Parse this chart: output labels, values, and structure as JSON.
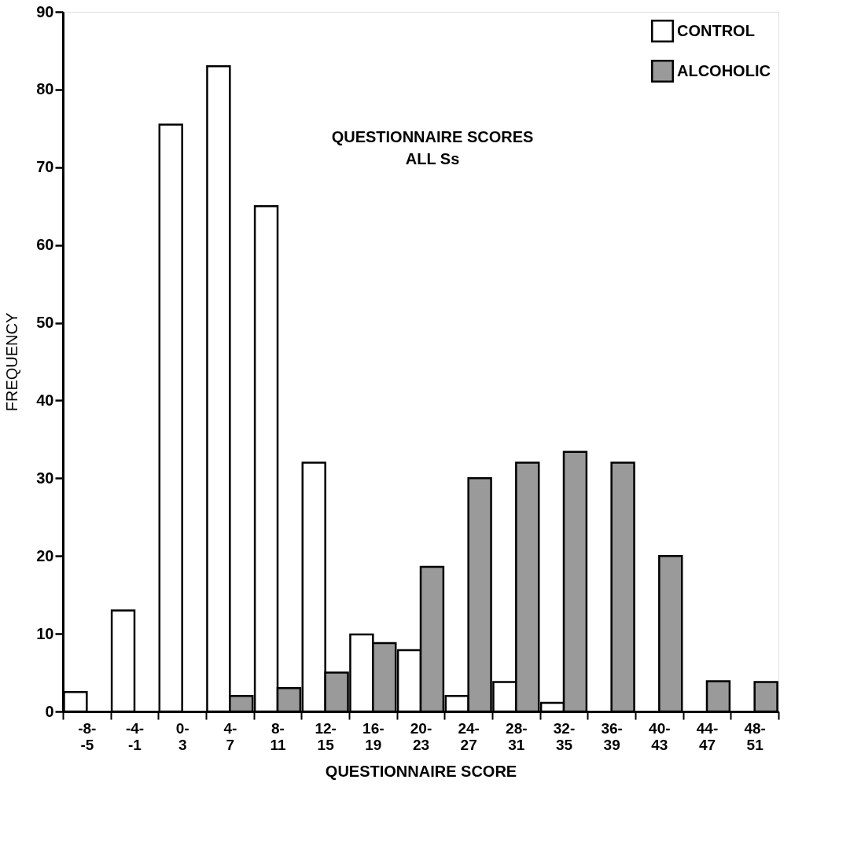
{
  "chart_data": {
    "type": "bar",
    "title": "QUESTIONNAIRE SCORES",
    "subtitle": "ALL Ss",
    "xlabel": "QUESTIONNAIRE SCORE",
    "ylabel": "FREQUENCY",
    "categories": [
      "-8- -5",
      "-4- -1",
      "0- 3",
      "4- 7",
      "8- 11",
      "12- 15",
      "16- 19",
      "20- 23",
      "24- 27",
      "28- 31",
      "32- 35",
      "36- 39",
      "40- 43",
      "44- 47",
      "48- 51"
    ],
    "series": [
      {
        "name": "CONTROL",
        "color": "#ffffff",
        "values": [
          2.5,
          13,
          75.5,
          83,
          65,
          32,
          9.9,
          7.9,
          2,
          3.8,
          1.1,
          null,
          null,
          null,
          null
        ]
      },
      {
        "name": "ALCOHOLIC",
        "color": "#9a9a9a",
        "values": [
          null,
          null,
          null,
          2,
          3,
          5,
          8.8,
          18.6,
          30,
          32,
          33.4,
          32,
          20,
          3.9,
          3.8
        ]
      }
    ],
    "ylim": [
      0,
      90
    ],
    "yticks": [
      0,
      10,
      20,
      30,
      40,
      50,
      60,
      70,
      80,
      90
    ],
    "grid": false,
    "legend": "top right"
  }
}
